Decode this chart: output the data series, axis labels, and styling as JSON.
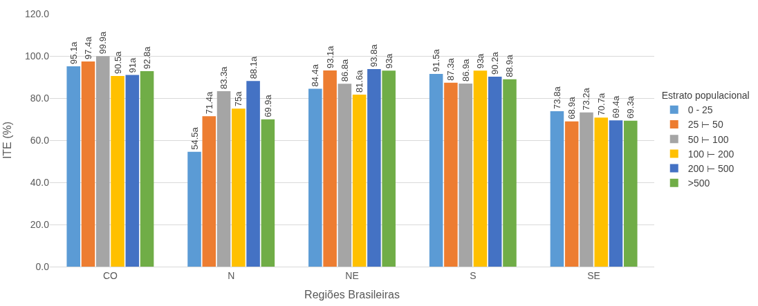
{
  "chart_data": {
    "type": "bar",
    "xlabel": "Regiões Brasileiras",
    "ylabel": "ITE (%)",
    "legend_title": "Estrato populacional",
    "categories": [
      "CO",
      "N",
      "NE",
      "S",
      "SE"
    ],
    "series": [
      {
        "name": "0 - 25",
        "color": "#5b9bd5",
        "values": [
          95.1,
          54.5,
          84.4,
          91.5,
          73.8
        ],
        "value_labels": [
          "95.1a",
          "54.5a",
          "84.4a",
          "91.5a",
          "73.8a"
        ]
      },
      {
        "name": "25 ⊢ 50",
        "color": "#ed7d31",
        "values": [
          97.4,
          71.4,
          93.1,
          87.3,
          68.9
        ],
        "value_labels": [
          "97.4a",
          "71.4a",
          "93.1a",
          "87.3a",
          "68.9a"
        ]
      },
      {
        "name": "50 ⊢ 100",
        "color": "#a5a5a5",
        "values": [
          99.9,
          83.3,
          86.8,
          86.9,
          73.2
        ],
        "value_labels": [
          "99.9a",
          "83.3a",
          "86.8a",
          "86.9a",
          "73.2a"
        ]
      },
      {
        "name": "100 ⊢ 200",
        "color": "#ffc000",
        "values": [
          90.5,
          75,
          81.6,
          93,
          70.7
        ],
        "value_labels": [
          "90.5a",
          "75a",
          "81.6a",
          "93a",
          "70.7a"
        ]
      },
      {
        "name": "200 ⊢ 500",
        "color": "#4472c4",
        "values": [
          91,
          88.1,
          93.8,
          90.2,
          69.4
        ],
        "value_labels": [
          "91a",
          "88.1a",
          "93.8a",
          "90.2a",
          "69.4a"
        ]
      },
      {
        "name": ">500",
        "color": "#70ad47",
        "values": [
          92.8,
          69.9,
          93,
          88.9,
          69.3
        ],
        "value_labels": [
          "92.8a",
          "69.9a",
          "93a",
          "88.9a",
          "69.3a"
        ]
      }
    ],
    "ylim": [
      0,
      120
    ],
    "yticks": [
      {
        "value": 0,
        "label": "0.0"
      },
      {
        "value": 20,
        "label": "20.0"
      },
      {
        "value": 40,
        "label": "40.0"
      },
      {
        "value": 60,
        "label": "60.0"
      },
      {
        "value": 80,
        "label": "80.0"
      },
      {
        "value": 100,
        "label": "100.0"
      },
      {
        "value": 120,
        "label": "120.0"
      }
    ],
    "grid": "y",
    "legend": "right"
  }
}
